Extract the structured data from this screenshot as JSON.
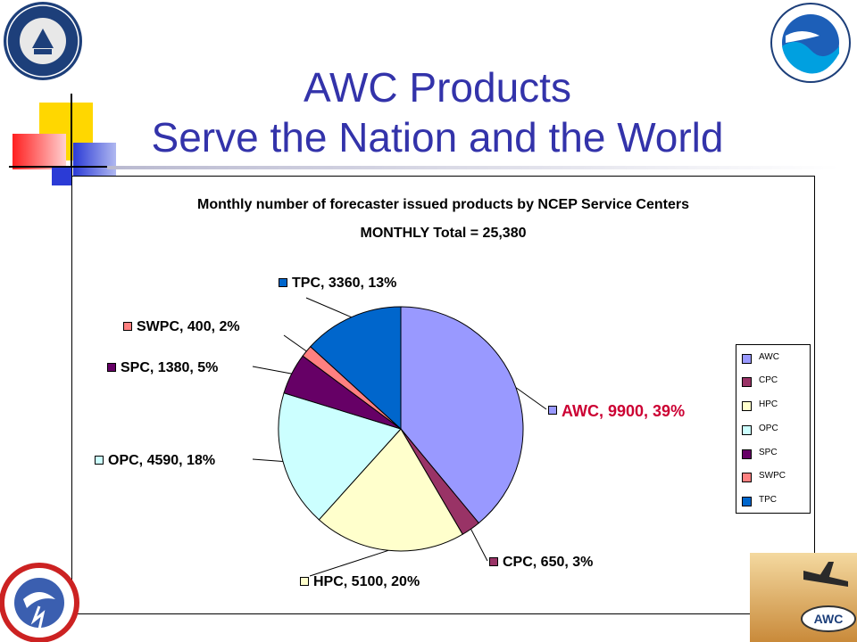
{
  "slide": {
    "title_line1": "AWC Products",
    "title_line2": "Serve the Nation and the World"
  },
  "logos": {
    "commerce_seal": "DEPARTMENT OF COMMERCE · UNITED STATES OF AMERICA",
    "noaa": "NOAA · U.S. DEPARTMENT OF COMMERCE",
    "nws": "NATIONAL WEATHER SERVICE",
    "awc": "AWC"
  },
  "chart_data": {
    "type": "pie",
    "title": "Monthly number of forecaster issued products by NCEP Service Centers",
    "subtitle": "MONTHLY Total = 25,380",
    "legend_position": "right",
    "slices": [
      {
        "name": "AWC",
        "value": 9900,
        "percent": 39,
        "label": "AWC, 9900, 39%",
        "color": "#9999ff"
      },
      {
        "name": "CPC",
        "value": 650,
        "percent": 3,
        "label": "CPC, 650, 3%",
        "color": "#993366"
      },
      {
        "name": "HPC",
        "value": 5100,
        "percent": 20,
        "label": "HPC, 5100, 20%",
        "color": "#ffffcc"
      },
      {
        "name": "OPC",
        "value": 4590,
        "percent": 18,
        "label": "OPC, 4590, 18%",
        "color": "#ccffff"
      },
      {
        "name": "SPC",
        "value": 1380,
        "percent": 5,
        "label": "SPC, 1380, 5%",
        "color": "#660066"
      },
      {
        "name": "SWPC",
        "value": 400,
        "percent": 2,
        "label": "SWPC, 400, 2%",
        "color": "#ff8080"
      },
      {
        "name": "TPC",
        "value": 3360,
        "percent": 13,
        "label": "TPC, 3360, 13%",
        "color": "#0066cc"
      }
    ],
    "highlight_label_color": "#cc0033"
  }
}
